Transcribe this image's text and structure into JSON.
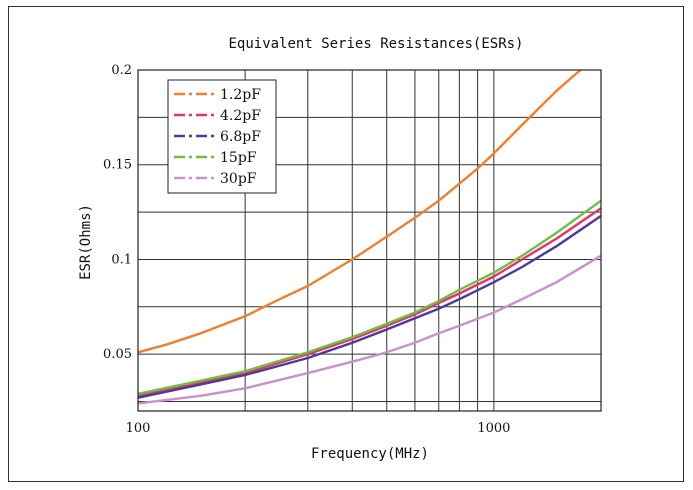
{
  "chart_data": {
    "type": "line",
    "title": "Equivalent Series Resistances(ESRs)",
    "xlabel": "Frequency(MHz)",
    "ylabel": "ESR(Ohms)",
    "x_scale": "log",
    "xlim": [
      100,
      2000
    ],
    "ylim": [
      0.02,
      0.2
    ],
    "x_ticks": [
      100,
      1000
    ],
    "x_tick_labels": [
      "100",
      "1000"
    ],
    "x_minor_gridlines": [
      200,
      300,
      400,
      500,
      600,
      700,
      800,
      900
    ],
    "y_ticks": [
      0.05,
      0.1,
      0.15,
      0.2
    ],
    "y_tick_labels": [
      "0.05",
      "0.1",
      "0.15",
      "0.2"
    ],
    "y_minor_gridlines": [
      0.025,
      0.075,
      0.125,
      0.175
    ],
    "grid": true,
    "legend_position": "top-left",
    "series": [
      {
        "name": "1.2pF",
        "color": "#f08030",
        "x": [
          100,
          120,
          150,
          200,
          250,
          300,
          400,
          500,
          600,
          700,
          800,
          900,
          1000,
          1200,
          1500,
          1750
        ],
        "y": [
          0.051,
          0.055,
          0.061,
          0.07,
          0.079,
          0.086,
          0.1,
          0.112,
          0.122,
          0.131,
          0.14,
          0.148,
          0.156,
          0.171,
          0.189,
          0.2
        ]
      },
      {
        "name": "4.2pF",
        "color": "#e8306a",
        "x": [
          100,
          150,
          200,
          300,
          400,
          500,
          600,
          700,
          800,
          1000,
          1200,
          1500,
          2000
        ],
        "y": [
          0.028,
          0.035,
          0.04,
          0.05,
          0.058,
          0.065,
          0.071,
          0.077,
          0.082,
          0.091,
          0.1,
          0.111,
          0.127
        ]
      },
      {
        "name": "6.8pF",
        "color": "#4a3a9c",
        "x": [
          100,
          150,
          200,
          300,
          400,
          500,
          600,
          700,
          800,
          1000,
          1200,
          1500,
          2000
        ],
        "y": [
          0.027,
          0.034,
          0.039,
          0.048,
          0.056,
          0.063,
          0.069,
          0.074,
          0.079,
          0.088,
          0.096,
          0.107,
          0.123
        ]
      },
      {
        "name": "15pF",
        "color": "#6cc040",
        "x": [
          100,
          150,
          200,
          300,
          400,
          500,
          600,
          700,
          800,
          1000,
          1200,
          1500,
          2000
        ],
        "y": [
          0.029,
          0.036,
          0.041,
          0.051,
          0.059,
          0.066,
          0.072,
          0.078,
          0.084,
          0.093,
          0.102,
          0.114,
          0.131
        ]
      },
      {
        "name": "30pF",
        "color": "#c890cc",
        "x": [
          100,
          150,
          200,
          300,
          400,
          500,
          600,
          700,
          800,
          1000,
          1200,
          1500,
          2000
        ],
        "y": [
          0.024,
          0.028,
          0.032,
          0.04,
          0.046,
          0.051,
          0.056,
          0.061,
          0.065,
          0.072,
          0.079,
          0.088,
          0.102
        ]
      }
    ]
  }
}
